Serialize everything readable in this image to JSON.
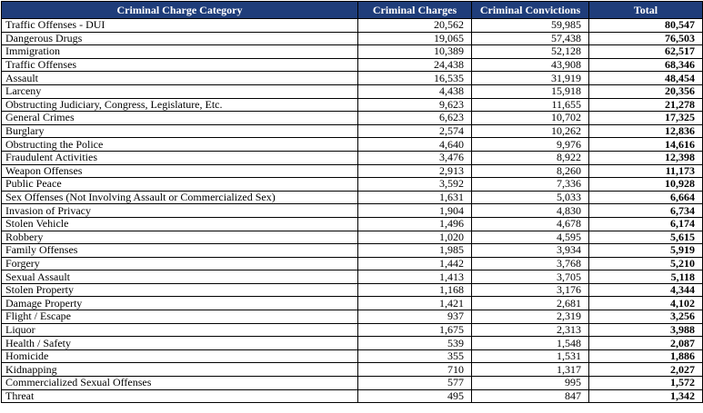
{
  "headers": [
    "Criminal Charge Category",
    "Criminal Charges",
    "Criminal Convictions",
    "Total"
  ],
  "rows": [
    [
      "Traffic Offenses - DUI",
      "20,562",
      "59,985",
      "80,547"
    ],
    [
      "Dangerous Drugs",
      "19,065",
      "57,438",
      "76,503"
    ],
    [
      "Immigration",
      "10,389",
      "52,128",
      "62,517"
    ],
    [
      "Traffic Offenses",
      "24,438",
      "43,908",
      "68,346"
    ],
    [
      "Assault",
      "16,535",
      "31,919",
      "48,454"
    ],
    [
      "Larceny",
      "4,438",
      "15,918",
      "20,356"
    ],
    [
      "Obstructing Judiciary, Congress, Legislature, Etc.",
      "9,623",
      "11,655",
      "21,278"
    ],
    [
      "General Crimes",
      "6,623",
      "10,702",
      "17,325"
    ],
    [
      "Burglary",
      "2,574",
      "10,262",
      "12,836"
    ],
    [
      "Obstructing the Police",
      "4,640",
      "9,976",
      "14,616"
    ],
    [
      "Fraudulent Activities",
      "3,476",
      "8,922",
      "12,398"
    ],
    [
      "Weapon Offenses",
      "2,913",
      "8,260",
      "11,173"
    ],
    [
      "Public Peace",
      "3,592",
      "7,336",
      "10,928"
    ],
    [
      "Sex Offenses (Not Involving Assault or Commercialized Sex)",
      "1,631",
      "5,033",
      "6,664"
    ],
    [
      "Invasion of Privacy",
      "1,904",
      "4,830",
      "6,734"
    ],
    [
      "Stolen Vehicle",
      "1,496",
      "4,678",
      "6,174"
    ],
    [
      "Robbery",
      "1,020",
      "4,595",
      "5,615"
    ],
    [
      "Family Offenses",
      "1,985",
      "3,934",
      "5,919"
    ],
    [
      "Forgery",
      "1,442",
      "3,768",
      "5,210"
    ],
    [
      "Sexual Assault",
      "1,413",
      "3,705",
      "5,118"
    ],
    [
      "Stolen Property",
      "1,168",
      "3,176",
      "4,344"
    ],
    [
      "Damage Property",
      "1,421",
      "2,681",
      "4,102"
    ],
    [
      "Flight / Escape",
      "937",
      "2,319",
      "3,256"
    ],
    [
      "Liquor",
      "1,675",
      "2,313",
      "3,988"
    ],
    [
      "Health / Safety",
      "539",
      "1,548",
      "2,087"
    ],
    [
      "Homicide",
      "355",
      "1,531",
      "1,886"
    ],
    [
      "Kidnapping",
      "710",
      "1,317",
      "2,027"
    ],
    [
      "Commercialized Sexual Offenses",
      "577",
      "995",
      "1,572"
    ],
    [
      "Threat",
      "495",
      "847",
      "1,342"
    ]
  ],
  "colors": {
    "header_bg": "#1f3d7a",
    "header_text": "#ffffff"
  }
}
